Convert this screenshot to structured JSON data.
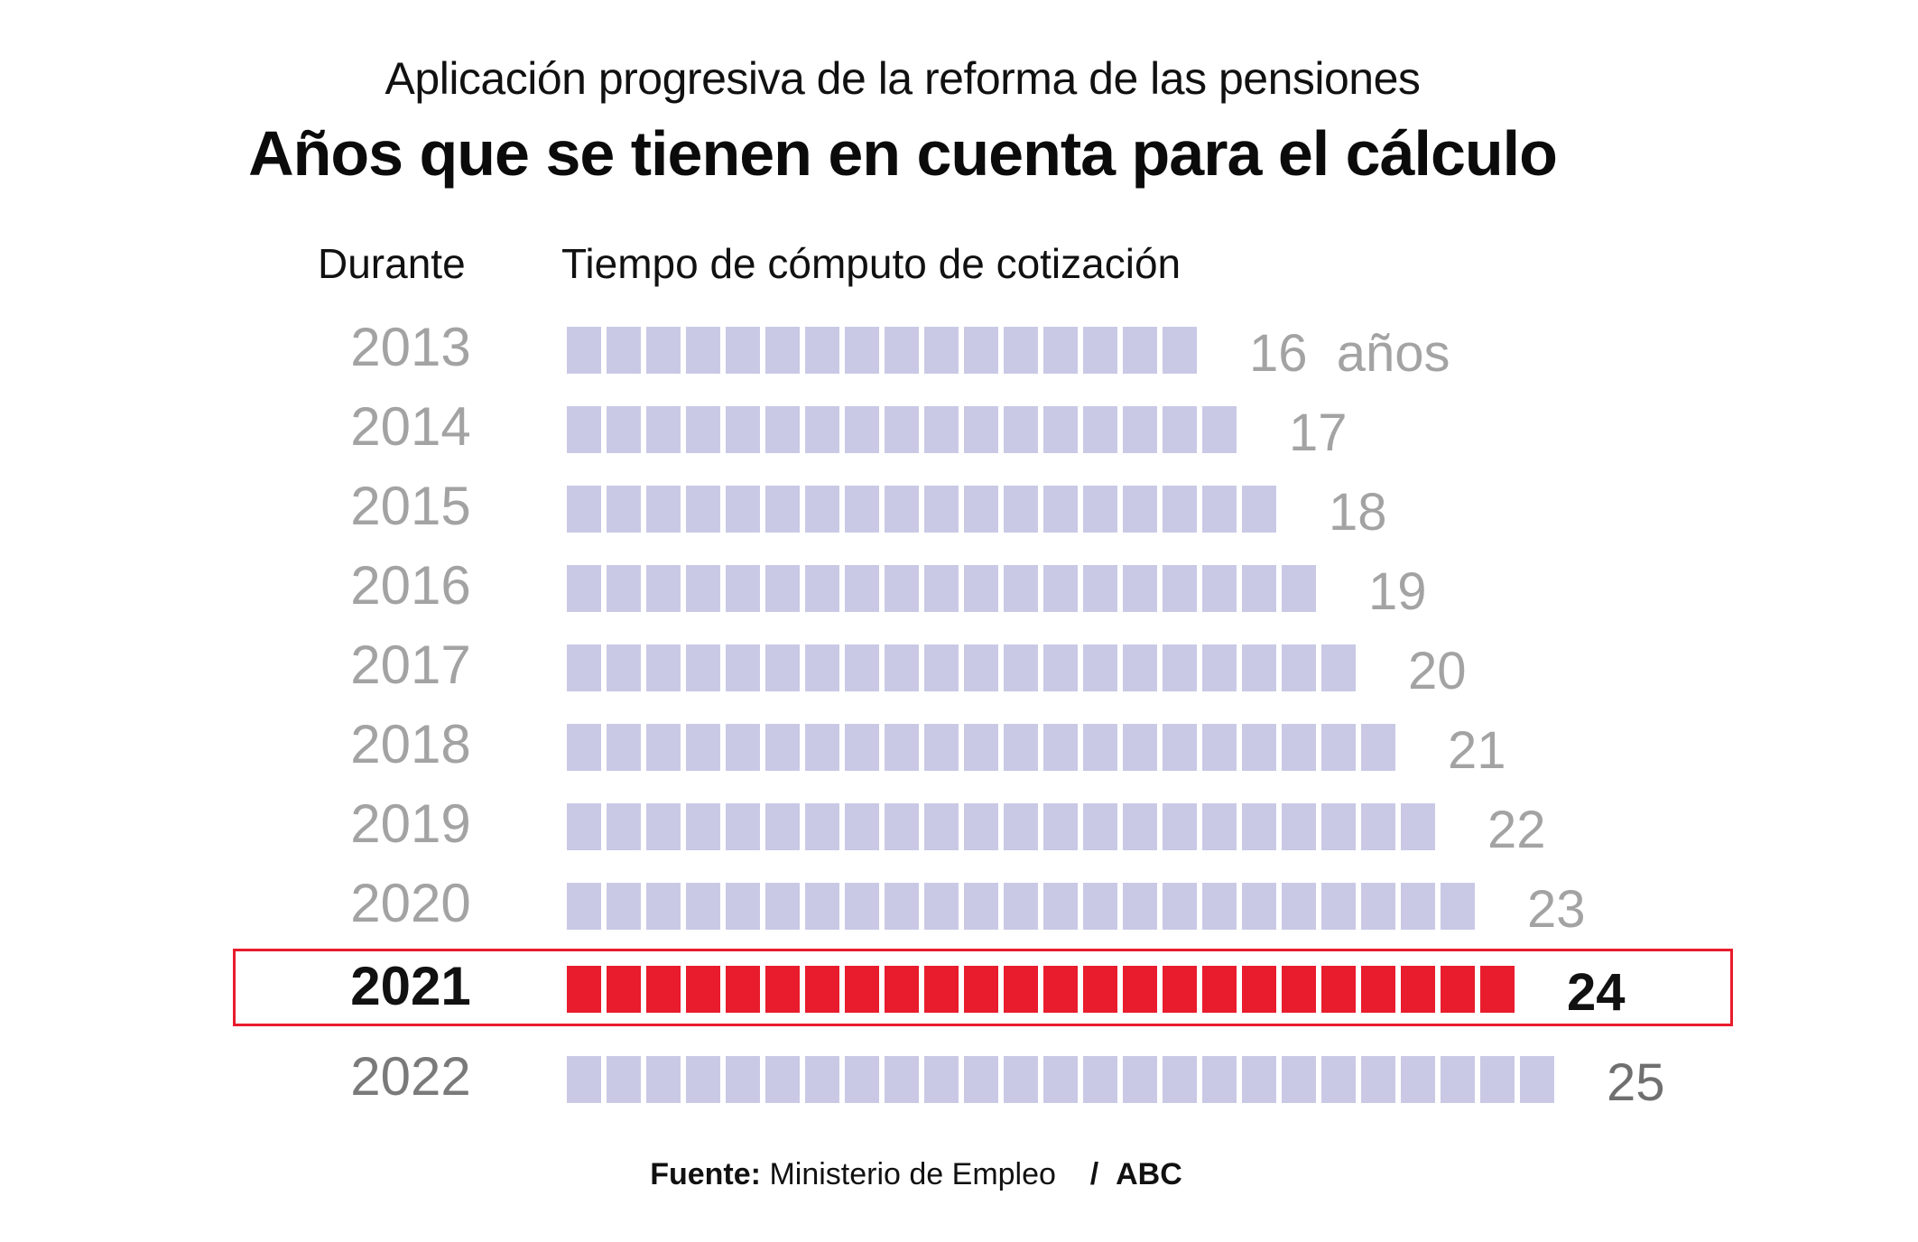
{
  "header": {
    "subtitle": "Aplicación progresiva de la reforma de las pensiones",
    "title": "Años que se tienen en cuenta para el cálculo"
  },
  "columns": {
    "year": "Durante",
    "time": "Tiempo de cómputo de cotización"
  },
  "colors": {
    "block": "#c9c9e6",
    "highlight": "#e81c2c",
    "label": "#a3a3a3"
  },
  "source": {
    "label": "Fuente:",
    "text": "Ministerio de Empleo",
    "separator": "/",
    "outlet": "ABC"
  },
  "chart_data": {
    "type": "bar",
    "orientation": "horizontal",
    "title": "Años que se tienen en cuenta para el cálculo",
    "subtitle": "Aplicación progresiva de la reforma de las pensiones",
    "xlabel": "Tiempo de cómputo de cotización",
    "ylabel": "Durante",
    "unit": "años",
    "categories": [
      "2013",
      "2014",
      "2015",
      "2016",
      "2017",
      "2018",
      "2019",
      "2020",
      "2021",
      "2022"
    ],
    "values": [
      16,
      17,
      18,
      19,
      20,
      21,
      22,
      23,
      24,
      25
    ],
    "value_labels": [
      "16  años",
      "17",
      "18",
      "19",
      "20",
      "21",
      "22",
      "23",
      "24",
      "25"
    ],
    "highlighted_category": "2021",
    "grid": false,
    "legend": "none"
  }
}
